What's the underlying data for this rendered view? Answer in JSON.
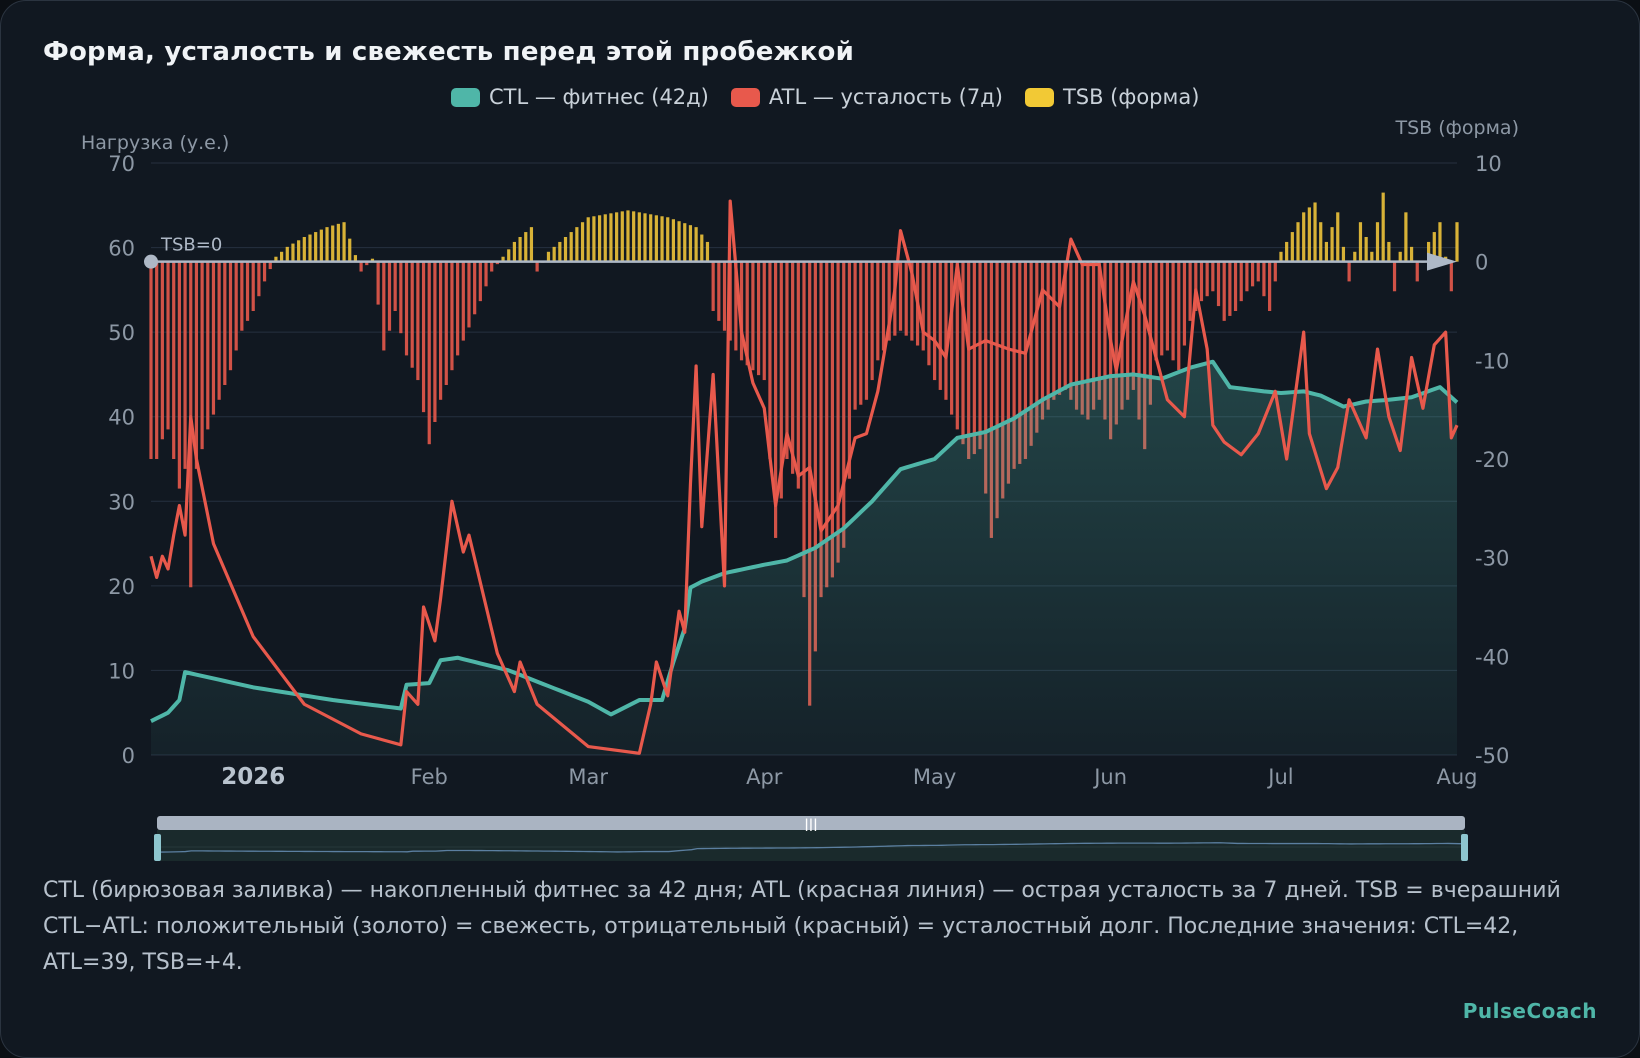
{
  "title": "Форма, усталость и свежесть перед этой пробежкой",
  "legend": {
    "ctl": "CTL — фитнес (42д)",
    "atl": "ATL — усталость (7д)",
    "tsb": "TSB (форма)"
  },
  "colors": {
    "ctl": "#4fb6a8",
    "atl": "#e8594c",
    "tsb_pos": "#e9c03a",
    "tsb_neg": "#e2584b",
    "grid": "#263040",
    "axis_text": "#8d98a5"
  },
  "caption": "CTL (бирюзовая заливка) — накопленный фитнес за 42 дня; ATL (красная линия) — острая усталость за 7 дней. TSB = вчерашний CTL−ATL: положительный (золото) = свежесть, отрицательный (красный) = усталостный долг. Последние значения: CTL=42, ATL=39, TSB=+4.",
  "brand": "PulseCoach",
  "chart_data": {
    "type": "line",
    "left_axis_label": "Нагрузка (у.е.)",
    "right_axis_label": "TSB (форма)",
    "zero_label": "TSB=0",
    "left_ylim": [
      0,
      70
    ],
    "left_ticks": [
      0,
      10,
      20,
      30,
      40,
      50,
      60,
      70
    ],
    "right_ylim": [
      -50,
      10
    ],
    "right_ticks": [
      -50,
      -40,
      -30,
      -20,
      -10,
      0,
      10
    ],
    "x_ticks": [
      {
        "date": "2026-01-01",
        "label": "2026",
        "bold": true
      },
      {
        "date": "2026-02-01",
        "label": "Feb"
      },
      {
        "date": "2026-03-01",
        "label": "Mar"
      },
      {
        "date": "2026-04-01",
        "label": "Apr"
      },
      {
        "date": "2026-05-01",
        "label": "May"
      },
      {
        "date": "2026-06-01",
        "label": "Jun"
      },
      {
        "date": "2026-07-01",
        "label": "Jul"
      },
      {
        "date": "2026-08-01",
        "label": "Aug"
      }
    ],
    "x_range": [
      "2025-12-14",
      "2026-08-01"
    ],
    "grid": true,
    "legend_position": "top-center",
    "ctl": {
      "name": "CTL — фитнес (42д)",
      "points": [
        [
          "2025-12-14",
          4
        ],
        [
          "2025-12-17",
          5
        ],
        [
          "2025-12-19",
          6.5
        ],
        [
          "2025-12-20",
          9.8
        ],
        [
          "2026-01-01",
          8
        ],
        [
          "2026-01-15",
          6.5
        ],
        [
          "2026-01-27",
          5.5
        ],
        [
          "2026-01-28",
          8.3
        ],
        [
          "2026-02-01",
          8.5
        ],
        [
          "2026-02-03",
          11.2
        ],
        [
          "2026-02-06",
          11.5
        ],
        [
          "2026-02-15",
          10
        ],
        [
          "2026-03-01",
          6.3
        ],
        [
          "2026-03-05",
          4.8
        ],
        [
          "2026-03-10",
          6.5
        ],
        [
          "2026-03-14",
          6.5
        ],
        [
          "2026-03-16",
          11
        ],
        [
          "2026-03-18",
          15
        ],
        [
          "2026-03-19",
          19.8
        ],
        [
          "2026-03-21",
          20.5
        ],
        [
          "2026-03-25",
          21.5
        ],
        [
          "2026-04-01",
          22.5
        ],
        [
          "2026-04-05",
          23
        ],
        [
          "2026-04-10",
          24.5
        ],
        [
          "2026-04-15",
          26.8
        ],
        [
          "2026-04-20",
          30
        ],
        [
          "2026-04-25",
          33.8
        ],
        [
          "2026-05-01",
          35
        ],
        [
          "2026-05-05",
          37.5
        ],
        [
          "2026-05-10",
          38.2
        ],
        [
          "2026-05-15",
          39.8
        ],
        [
          "2026-05-20",
          42
        ],
        [
          "2026-05-25",
          43.8
        ],
        [
          "2026-06-01",
          44.8
        ],
        [
          "2026-06-05",
          45
        ],
        [
          "2026-06-10",
          44.5
        ],
        [
          "2026-06-15",
          45.8
        ],
        [
          "2026-06-19",
          46.5
        ],
        [
          "2026-06-22",
          43.5
        ],
        [
          "2026-06-28",
          43
        ],
        [
          "2026-07-01",
          42.8
        ],
        [
          "2026-07-05",
          43
        ],
        [
          "2026-07-08",
          42.5
        ],
        [
          "2026-07-12",
          41.2
        ],
        [
          "2026-07-16",
          41.8
        ],
        [
          "2026-07-20",
          42
        ],
        [
          "2026-07-24",
          42.3
        ],
        [
          "2026-07-29",
          43.5
        ],
        [
          "2026-08-01",
          41.7
        ]
      ]
    },
    "atl": {
      "name": "ATL — усталость (7д)",
      "points": [
        [
          "2025-12-14",
          23.5
        ],
        [
          "2025-12-15",
          21
        ],
        [
          "2025-12-16",
          23.5
        ],
        [
          "2025-12-17",
          22
        ],
        [
          "2025-12-18",
          26
        ],
        [
          "2025-12-19",
          29.5
        ],
        [
          "2025-12-20",
          26
        ],
        [
          "2025-12-21",
          40
        ],
        [
          "2025-12-22",
          35
        ],
        [
          "2025-12-25",
          25
        ],
        [
          "2026-01-01",
          14
        ],
        [
          "2026-01-10",
          6
        ],
        [
          "2026-01-20",
          2.5
        ],
        [
          "2026-01-27",
          1.2
        ],
        [
          "2026-01-28",
          7.5
        ],
        [
          "2026-01-30",
          6
        ],
        [
          "2026-01-31",
          17.5
        ],
        [
          "2026-02-02",
          13.5
        ],
        [
          "2026-02-03",
          18.5
        ],
        [
          "2026-02-05",
          30
        ],
        [
          "2026-02-07",
          24
        ],
        [
          "2026-02-08",
          26
        ],
        [
          "2026-02-13",
          12
        ],
        [
          "2026-02-16",
          7.5
        ],
        [
          "2026-02-17",
          11
        ],
        [
          "2026-02-20",
          6
        ],
        [
          "2026-03-01",
          1
        ],
        [
          "2026-03-10",
          0.2
        ],
        [
          "2026-03-12",
          6
        ],
        [
          "2026-03-13",
          11
        ],
        [
          "2026-03-15",
          7
        ],
        [
          "2026-03-17",
          17
        ],
        [
          "2026-03-18",
          14.5
        ],
        [
          "2026-03-19",
          32
        ],
        [
          "2026-03-20",
          46
        ],
        [
          "2026-03-21",
          27
        ],
        [
          "2026-03-23",
          45
        ],
        [
          "2026-03-25",
          20
        ],
        [
          "2026-03-26",
          65.5
        ],
        [
          "2026-03-28",
          50
        ],
        [
          "2026-03-30",
          44
        ],
        [
          "2026-04-01",
          41
        ],
        [
          "2026-04-03",
          29.5
        ],
        [
          "2026-04-05",
          38
        ],
        [
          "2026-04-07",
          33
        ],
        [
          "2026-04-09",
          34
        ],
        [
          "2026-04-11",
          26.5
        ],
        [
          "2026-04-14",
          29.5
        ],
        [
          "2026-04-17",
          37.5
        ],
        [
          "2026-04-19",
          38
        ],
        [
          "2026-04-21",
          43
        ],
        [
          "2026-04-24",
          55
        ],
        [
          "2026-04-25",
          62
        ],
        [
          "2026-04-27",
          57
        ],
        [
          "2026-04-29",
          50
        ],
        [
          "2026-05-01",
          49
        ],
        [
          "2026-05-03",
          47
        ],
        [
          "2026-05-05",
          58
        ],
        [
          "2026-05-07",
          48
        ],
        [
          "2026-05-10",
          49
        ],
        [
          "2026-05-14",
          48
        ],
        [
          "2026-05-17",
          47.5
        ],
        [
          "2026-05-20",
          55
        ],
        [
          "2026-05-23",
          53
        ],
        [
          "2026-05-25",
          61
        ],
        [
          "2026-05-27",
          58
        ],
        [
          "2026-05-30",
          58
        ],
        [
          "2026-06-01",
          49
        ],
        [
          "2026-06-02",
          45.5
        ],
        [
          "2026-06-05",
          56
        ],
        [
          "2026-06-07",
          52
        ],
        [
          "2026-06-09",
          47
        ],
        [
          "2026-06-11",
          42
        ],
        [
          "2026-06-14",
          40
        ],
        [
          "2026-06-16",
          55
        ],
        [
          "2026-06-18",
          48
        ],
        [
          "2026-06-19",
          39
        ],
        [
          "2026-06-21",
          37
        ],
        [
          "2026-06-24",
          35.5
        ],
        [
          "2026-06-27",
          38
        ],
        [
          "2026-06-30",
          43
        ],
        [
          "2026-07-02",
          35
        ],
        [
          "2026-07-05",
          50
        ],
        [
          "2026-07-06",
          38
        ],
        [
          "2026-07-09",
          31.5
        ],
        [
          "2026-07-11",
          34
        ],
        [
          "2026-07-13",
          42
        ],
        [
          "2026-07-16",
          37.5
        ],
        [
          "2026-07-18",
          48
        ],
        [
          "2026-07-20",
          40
        ],
        [
          "2026-07-22",
          36
        ],
        [
          "2026-07-24",
          47
        ],
        [
          "2026-07-26",
          41
        ],
        [
          "2026-07-28",
          48.5
        ],
        [
          "2026-07-30",
          50
        ],
        [
          "2026-07-31",
          37.5
        ],
        [
          "2026-08-01",
          39
        ]
      ]
    },
    "tsb": {
      "name": "TSB (форма)",
      "points": [
        [
          "2025-12-14",
          -20
        ],
        [
          "2025-12-15",
          -20
        ],
        [
          "2025-12-16",
          -18
        ],
        [
          "2025-12-17",
          -17
        ],
        [
          "2025-12-18",
          -20
        ],
        [
          "2025-12-19",
          -23
        ],
        [
          "2025-12-20",
          -21
        ],
        [
          "2025-12-21",
          -33
        ],
        [
          "2025-12-22",
          -21
        ],
        [
          "2025-12-24",
          -17
        ],
        [
          "2025-12-26",
          -14
        ],
        [
          "2025-12-28",
          -11
        ],
        [
          "2025-12-30",
          -7
        ],
        [
          "2026-01-01",
          -5
        ],
        [
          "2026-01-03",
          -2
        ],
        [
          "2026-01-05",
          0.5
        ],
        [
          "2026-01-07",
          1.5
        ],
        [
          "2026-01-10",
          2.5
        ],
        [
          "2026-01-14",
          3.5
        ],
        [
          "2026-01-17",
          4
        ],
        [
          "2026-01-20",
          -1
        ],
        [
          "2026-01-22",
          0.3
        ],
        [
          "2026-01-24",
          -9
        ],
        [
          "2026-01-26",
          -5
        ],
        [
          "2026-01-28",
          -9.5
        ],
        [
          "2026-01-30",
          -12
        ],
        [
          "2026-02-01",
          -18.5
        ],
        [
          "2026-02-03",
          -14
        ],
        [
          "2026-02-05",
          -11
        ],
        [
          "2026-02-07",
          -8
        ],
        [
          "2026-02-10",
          -4
        ],
        [
          "2026-02-12",
          -1
        ],
        [
          "2026-02-14",
          0.5
        ],
        [
          "2026-02-16",
          2
        ],
        [
          "2026-02-18",
          3
        ],
        [
          "2026-02-19",
          3.5
        ],
        [
          "2026-02-20",
          -1
        ],
        [
          "2026-02-22",
          1
        ],
        [
          "2026-02-25",
          2.5
        ],
        [
          "2026-03-01",
          4.5
        ],
        [
          "2026-03-08",
          5.2
        ],
        [
          "2026-03-15",
          4.5
        ],
        [
          "2026-03-20",
          3.5
        ],
        [
          "2026-03-22",
          2
        ],
        [
          "2026-03-23",
          -5
        ],
        [
          "2026-03-26",
          -8
        ],
        [
          "2026-03-28",
          -10
        ],
        [
          "2026-03-30",
          -11
        ],
        [
          "2026-04-01",
          -12
        ],
        [
          "2026-04-03",
          -28
        ],
        [
          "2026-04-05",
          -20
        ],
        [
          "2026-04-07",
          -23
        ],
        [
          "2026-04-09",
          -45
        ],
        [
          "2026-04-11",
          -34
        ],
        [
          "2026-04-13",
          -32
        ],
        [
          "2026-04-15",
          -29
        ],
        [
          "2026-04-17",
          -15
        ],
        [
          "2026-04-19",
          -14
        ],
        [
          "2026-04-21",
          -10
        ],
        [
          "2026-04-23",
          -8
        ],
        [
          "2026-04-25",
          -7
        ],
        [
          "2026-04-27",
          -8
        ],
        [
          "2026-04-29",
          -9
        ],
        [
          "2026-05-01",
          -12
        ],
        [
          "2026-05-03",
          -14
        ],
        [
          "2026-05-05",
          -17
        ],
        [
          "2026-05-07",
          -20
        ],
        [
          "2026-05-09",
          -19
        ],
        [
          "2026-05-11",
          -28
        ],
        [
          "2026-05-13",
          -24
        ],
        [
          "2026-05-15",
          -21
        ],
        [
          "2026-05-17",
          -20
        ],
        [
          "2026-05-20",
          -16
        ],
        [
          "2026-05-22",
          -14
        ],
        [
          "2026-05-24",
          -13
        ],
        [
          "2026-05-26",
          -15
        ],
        [
          "2026-05-28",
          -16
        ],
        [
          "2026-05-30",
          -14
        ],
        [
          "2026-06-01",
          -18
        ],
        [
          "2026-06-03",
          -15
        ],
        [
          "2026-06-05",
          -13
        ],
        [
          "2026-06-07",
          -19
        ],
        [
          "2026-06-09",
          -10
        ],
        [
          "2026-06-11",
          -9
        ],
        [
          "2026-06-13",
          -11
        ],
        [
          "2026-06-15",
          -6
        ],
        [
          "2026-06-17",
          -4
        ],
        [
          "2026-06-19",
          -3
        ],
        [
          "2026-06-21",
          -6
        ],
        [
          "2026-06-23",
          -5
        ],
        [
          "2026-06-25",
          -3
        ],
        [
          "2026-06-27",
          -2
        ],
        [
          "2026-06-29",
          -5
        ],
        [
          "2026-07-01",
          1
        ],
        [
          "2026-07-03",
          3
        ],
        [
          "2026-07-05",
          5
        ],
        [
          "2026-07-07",
          6
        ],
        [
          "2026-07-09",
          2
        ],
        [
          "2026-07-11",
          5
        ],
        [
          "2026-07-13",
          -2
        ],
        [
          "2026-07-15",
          4
        ],
        [
          "2026-07-17",
          1
        ],
        [
          "2026-07-19",
          7
        ],
        [
          "2026-07-21",
          -3
        ],
        [
          "2026-07-23",
          5
        ],
        [
          "2026-07-25",
          -2
        ],
        [
          "2026-07-27",
          2
        ],
        [
          "2026-07-29",
          4
        ],
        [
          "2026-07-31",
          -3
        ],
        [
          "2026-08-01",
          4
        ]
      ]
    },
    "last_values": {
      "ctl": 42,
      "atl": 39,
      "tsb": 4
    }
  }
}
